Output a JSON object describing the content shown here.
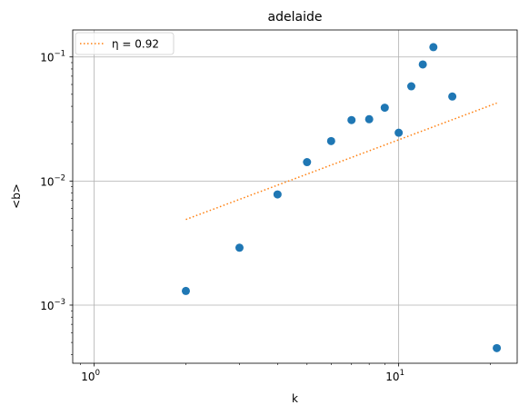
{
  "chart_data": {
    "type": "scatter",
    "title": "adelaide",
    "xlabel": "k",
    "ylabel": "<b>",
    "xscale": "log",
    "yscale": "log",
    "xlim": [
      0.85,
      24.5
    ],
    "ylim": [
      0.00034,
      0.165
    ],
    "grid": true,
    "legend_position": "top-left",
    "x_ticks": [
      {
        "value": 1,
        "base": "10",
        "exp": "0"
      },
      {
        "value": 10,
        "base": "10",
        "exp": "1"
      }
    ],
    "y_ticks": [
      {
        "value": 0.001,
        "base": "10",
        "exp": "−3"
      },
      {
        "value": 0.01,
        "base": "10",
        "exp": "−2"
      },
      {
        "value": 0.1,
        "base": "10",
        "exp": "−1"
      }
    ],
    "series": [
      {
        "kind": "points",
        "color": "#1f77b4",
        "x": [
          2,
          3,
          4,
          5,
          6,
          7,
          8,
          9,
          10,
          11,
          12,
          13,
          15,
          21
        ],
        "y": [
          0.0013,
          0.0029,
          0.0078,
          0.0142,
          0.021,
          0.031,
          0.0315,
          0.039,
          0.0245,
          0.058,
          0.087,
          0.12,
          0.048,
          0.00045
        ]
      },
      {
        "kind": "fit-line",
        "name": "η = 0.92",
        "color": "#ff7f0e",
        "style": "dotted",
        "x": [
          2,
          21
        ],
        "y": [
          0.0049,
          0.0425
        ]
      }
    ]
  }
}
